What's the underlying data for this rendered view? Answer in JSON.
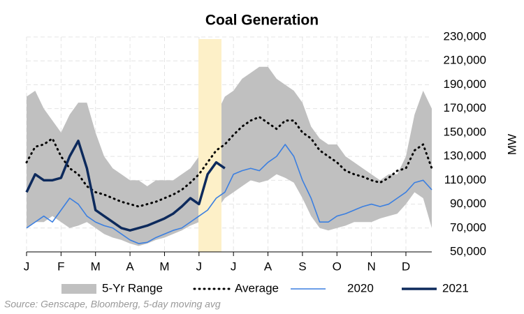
{
  "chart_data": {
    "type": "line",
    "title": "Coal Generation",
    "y_label": "MW",
    "source": "Source: Genscape, Bloomberg, 5-day moving avg",
    "categories": [
      "J",
      null,
      null,
      null,
      "F",
      null,
      null,
      null,
      "M",
      null,
      null,
      null,
      "A",
      null,
      null,
      null,
      "M",
      null,
      null,
      null,
      "J",
      null,
      null,
      null,
      "J",
      null,
      null,
      null,
      "A",
      null,
      null,
      null,
      "S",
      null,
      null,
      null,
      "O",
      null,
      null,
      null,
      "N",
      null,
      null,
      null,
      "D",
      null,
      null,
      null
    ],
    "ylim": [
      50000,
      230000
    ],
    "yticks": [
      {
        "value": 50000,
        "label": "50,000"
      },
      {
        "value": 70000,
        "label": "70,000"
      },
      {
        "value": 90000,
        "label": "90,000"
      },
      {
        "value": 110000,
        "label": "110,000"
      },
      {
        "value": 130000,
        "label": "130,000"
      },
      {
        "value": 150000,
        "label": "150,000"
      },
      {
        "value": 170000,
        "label": "170,000"
      },
      {
        "value": 190000,
        "label": "190,000"
      },
      {
        "value": 210000,
        "label": "210,000"
      },
      {
        "value": 230000,
        "label": "230,000"
      }
    ],
    "grid": true,
    "legend": "bottom",
    "range": {
      "name": "5-Yr Range",
      "color": "#c0c0c0",
      "upper": [
        180000,
        185000,
        170000,
        160000,
        150000,
        165000,
        175000,
        175000,
        150000,
        130000,
        120000,
        115000,
        110000,
        110000,
        105000,
        110000,
        110000,
        110000,
        115000,
        120000,
        130000,
        150000,
        165000,
        180000,
        185000,
        195000,
        200000,
        205000,
        205000,
        195000,
        190000,
        185000,
        175000,
        155000,
        145000,
        140000,
        140000,
        130000,
        125000,
        120000,
        115000,
        110000,
        115000,
        115000,
        130000,
        165000,
        185000,
        170000
      ],
      "lower": [
        70000,
        75000,
        75000,
        80000,
        75000,
        70000,
        72000,
        75000,
        70000,
        65000,
        62000,
        60000,
        57000,
        55000,
        57000,
        60000,
        62000,
        65000,
        68000,
        72000,
        75000,
        80000,
        85000,
        95000,
        100000,
        105000,
        110000,
        108000,
        110000,
        115000,
        112000,
        108000,
        95000,
        80000,
        70000,
        68000,
        70000,
        72000,
        75000,
        75000,
        75000,
        78000,
        80000,
        82000,
        90000,
        100000,
        95000,
        70000
      ]
    },
    "series": [
      {
        "name": "Average",
        "color": "#000000",
        "style": "dotted",
        "values": [
          125000,
          138000,
          140000,
          145000,
          130000,
          120000,
          115000,
          105000,
          100000,
          98000,
          95000,
          92000,
          90000,
          88000,
          90000,
          92000,
          95000,
          98000,
          102000,
          108000,
          115000,
          125000,
          135000,
          140000,
          148000,
          155000,
          160000,
          163000,
          158000,
          153000,
          160000,
          160000,
          150000,
          145000,
          135000,
          130000,
          125000,
          118000,
          115000,
          113000,
          110000,
          108000,
          112000,
          118000,
          120000,
          135000,
          140000,
          120000
        ]
      },
      {
        "name": "2020",
        "color": "#3b7fe0",
        "style": "thin",
        "values": [
          70000,
          75000,
          80000,
          75000,
          85000,
          95000,
          90000,
          80000,
          75000,
          72000,
          70000,
          65000,
          60000,
          57000,
          58000,
          62000,
          65000,
          68000,
          70000,
          75000,
          80000,
          85000,
          95000,
          100000,
          115000,
          118000,
          120000,
          118000,
          125000,
          130000,
          140000,
          130000,
          110000,
          95000,
          75000,
          75000,
          80000,
          82000,
          85000,
          88000,
          90000,
          88000,
          90000,
          95000,
          100000,
          108000,
          110000,
          102000
        ]
      },
      {
        "name": "2021",
        "color": "#0d2a5c",
        "style": "thick",
        "values": [
          100000,
          115000,
          110000,
          110000,
          112000,
          130000,
          143000,
          120000,
          85000,
          80000,
          75000,
          70000,
          68000,
          70000,
          72000,
          75000,
          78000,
          82000,
          88000,
          95000,
          90000,
          115000,
          125000,
          120000,
          null,
          null,
          null,
          null,
          null,
          null,
          null,
          null,
          null,
          null,
          null,
          null,
          null,
          null,
          null,
          null,
          null,
          null,
          null,
          null,
          null,
          null,
          null,
          null
        ]
      }
    ]
  }
}
